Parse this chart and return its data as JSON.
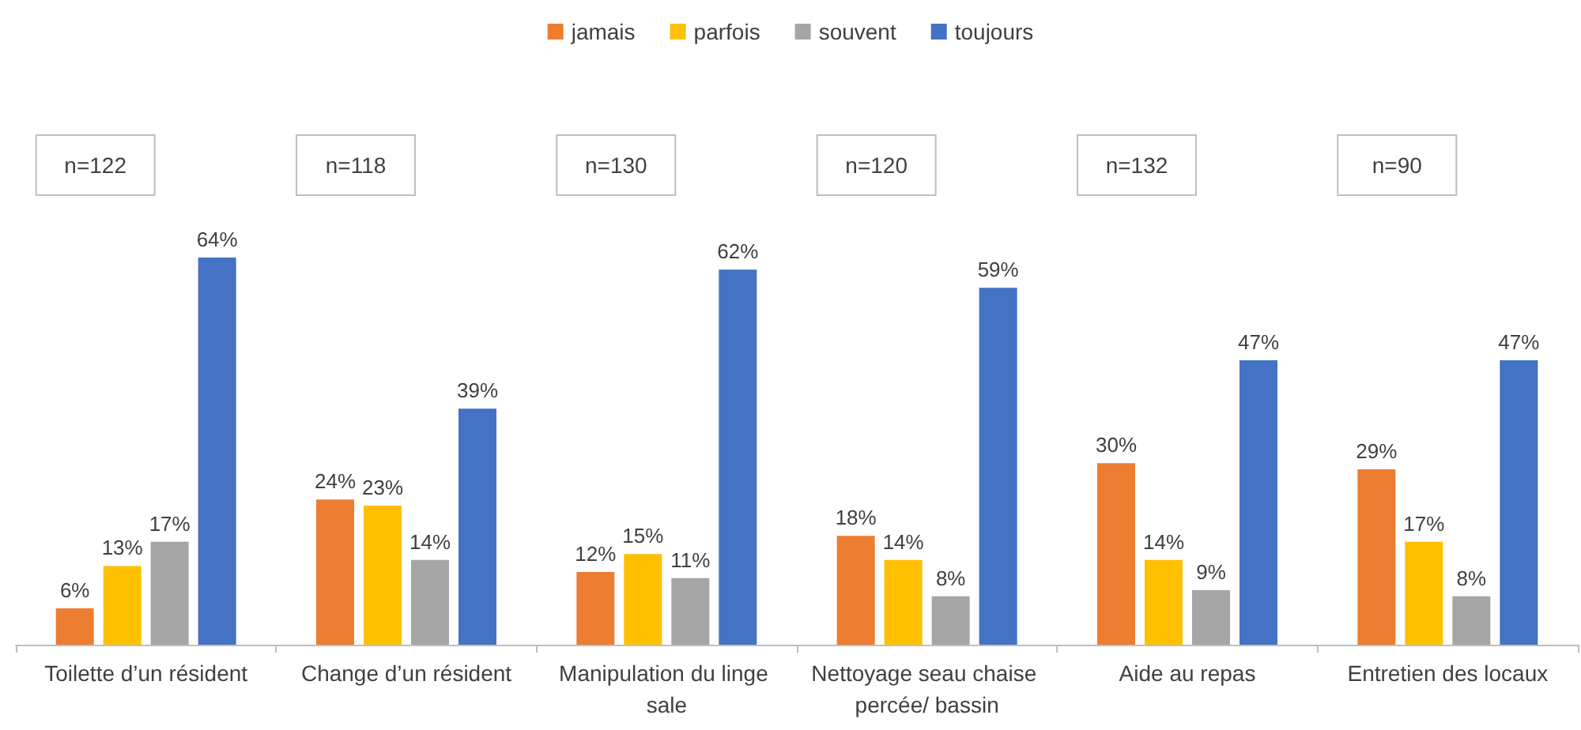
{
  "chart_data": {
    "type": "bar",
    "categories": [
      "Toilette d’un résident",
      "Change d’un résident",
      "Manipulation du linge sale",
      "Nettoyage seau chaise percée/ bassin",
      "Aide au repas",
      "Entretien des locaux"
    ],
    "series": [
      {
        "name": "jamais",
        "color": "#ed7d31",
        "values": [
          6,
          24,
          12,
          18,
          30,
          29
        ],
        "value_labels": [
          "6%",
          "24%",
          "12%",
          "18%",
          "30%",
          "29%"
        ]
      },
      {
        "name": "parfois",
        "color": "#ffc000",
        "values": [
          13,
          23,
          15,
          14,
          14,
          17
        ],
        "value_labels": [
          "13%",
          "23%",
          "15%",
          "14%",
          "14%",
          "17%"
        ]
      },
      {
        "name": "souvent",
        "color": "#a5a5a5",
        "values": [
          17,
          14,
          11,
          8,
          9,
          8
        ],
        "value_labels": [
          "17%",
          "14%",
          "11%",
          "8%",
          "9%",
          "8%"
        ]
      },
      {
        "name": "toujours",
        "color": "#4472c4",
        "values": [
          64,
          39,
          62,
          59,
          47,
          47
        ],
        "value_labels": [
          "64%",
          "39%",
          "62%",
          "59%",
          "47%",
          "47%"
        ]
      }
    ],
    "annotations": [
      "n=122",
      "n=118",
      "n=130",
      "n=120",
      "n=132",
      "n=90"
    ],
    "legend": "top",
    "grid": false
  }
}
